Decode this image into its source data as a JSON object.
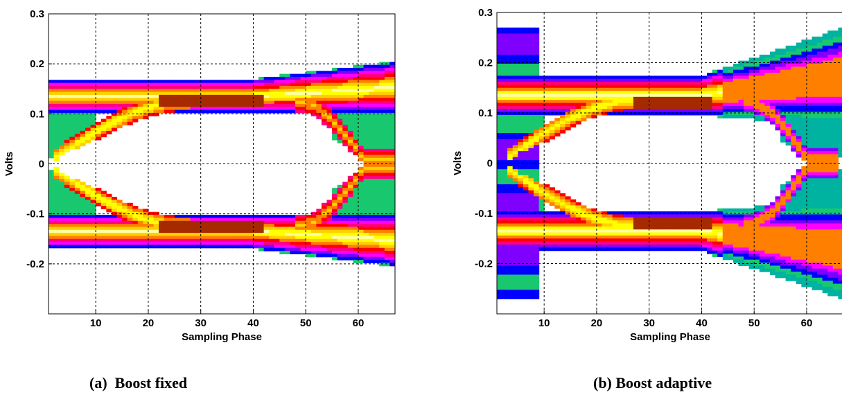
{
  "captions": {
    "a": "(a)  Boost fixed",
    "b": "(b) Boost adaptive"
  },
  "colormap": [
    "#00b2a0",
    "#19c86e",
    "#0000ff",
    "#7f00ff",
    "#ff00ff",
    "#ff0080",
    "#ff0000",
    "#ff7f00",
    "#ffd000",
    "#ffff00",
    "#ffffa0",
    "#ff3000",
    "#a52a00",
    "#8b1a00"
  ],
  "chart_data": [
    {
      "type": "heatmap",
      "id": "a",
      "caption": "(a)  Boost fixed",
      "xlabel": "Sampling Phase",
      "ylabel": "Volts",
      "xlim": [
        1,
        67
      ],
      "ylim": [
        -0.3,
        0.3
      ],
      "xticks": [
        10,
        20,
        30,
        40,
        50,
        60
      ],
      "yticks": [
        "0.3",
        "0.2",
        "0.1",
        "0",
        "-0.1",
        "-0.2"
      ],
      "ytick_values": [
        0.3,
        0.2,
        0.1,
        0,
        -0.1,
        -0.2
      ],
      "grid": true,
      "description_values": {
        "rail_center_volts": 0.135,
        "rail_half_width_volts": 0.035,
        "eye_opening_peak_volts": 0.09,
        "crossing_phases": [
          2,
          61
        ],
        "peak_density_band_x": [
          22,
          42
        ],
        "peak_density_band_y": 0.125,
        "rail_spread_at_right_volts": [
          0.1,
          0.205
        ]
      }
    },
    {
      "type": "heatmap",
      "id": "b",
      "caption": "(b) Boost adaptive",
      "xlabel": "Sampling Phase",
      "ylabel": "Volts",
      "xlim": [
        1,
        67
      ],
      "ylim": [
        -0.3,
        0.3
      ],
      "xticks": [
        10,
        20,
        30,
        40,
        50,
        60
      ],
      "yticks": [
        "0.3",
        "0.2",
        "0.1",
        "0",
        "-0.1",
        "-0.2"
      ],
      "ytick_values": [
        0.3,
        0.2,
        0.1,
        0,
        -0.1,
        -0.2
      ],
      "grid": true,
      "description_values": {
        "rail_center_volts": 0.135,
        "rail_half_width_volts": 0.04,
        "eye_opening_peak_volts": 0.085,
        "crossing_phases": [
          3,
          60
        ],
        "left_bar_x": [
          1,
          9
        ],
        "left_bar_y": [
          -0.27,
          0.27
        ],
        "peak_density_band_x": [
          27,
          42
        ],
        "peak_density_band_y": 0.12,
        "rail_spread_at_right_volts": [
          0.06,
          0.27
        ]
      }
    }
  ]
}
